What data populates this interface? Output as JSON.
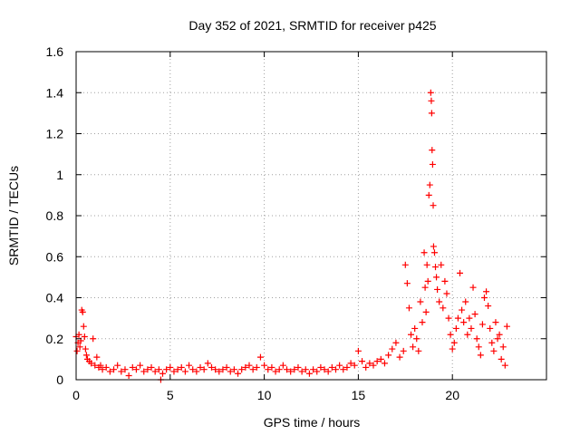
{
  "chart_data": {
    "type": "scatter",
    "title": "Day 352 of 2021, SRMTID for receiver p425",
    "xlabel": "GPS time / hours",
    "ylabel": "SRMTID / TECUs",
    "xlim": [
      0,
      25
    ],
    "ylim": [
      0,
      1.6
    ],
    "x_ticks": [
      0,
      5,
      10,
      15,
      20
    ],
    "x_tick_labels": [
      "0",
      "5",
      "10",
      "15",
      "20"
    ],
    "y_ticks": [
      0,
      0.2,
      0.4,
      0.6,
      0.8,
      1.0,
      1.2,
      1.4,
      1.6
    ],
    "y_tick_labels": [
      "0",
      "0.2",
      "0.4",
      "0.6",
      "0.8",
      "1",
      "1.2",
      "1.4",
      "1.6"
    ],
    "grid": true,
    "marker": "+",
    "series": [
      {
        "name": "SRMTID",
        "color": "#ff0000",
        "points": [
          [
            0.0,
            0.21
          ],
          [
            0.05,
            0.14
          ],
          [
            0.1,
            0.18
          ],
          [
            0.15,
            0.22
          ],
          [
            0.2,
            0.16
          ],
          [
            0.25,
            0.19
          ],
          [
            0.3,
            0.34
          ],
          [
            0.35,
            0.33
          ],
          [
            0.4,
            0.26
          ],
          [
            0.45,
            0.21
          ],
          [
            0.5,
            0.15
          ],
          [
            0.55,
            0.12
          ],
          [
            0.6,
            0.1
          ],
          [
            0.7,
            0.09
          ],
          [
            0.8,
            0.08
          ],
          [
            0.9,
            0.2
          ],
          [
            1.0,
            0.07
          ],
          [
            1.1,
            0.11
          ],
          [
            1.2,
            0.06
          ],
          [
            1.3,
            0.07
          ],
          [
            1.4,
            0.05
          ],
          [
            1.6,
            0.06
          ],
          [
            1.8,
            0.04
          ],
          [
            2.0,
            0.05
          ],
          [
            2.2,
            0.07
          ],
          [
            2.4,
            0.04
          ],
          [
            2.6,
            0.05
          ],
          [
            2.8,
            0.02
          ],
          [
            3.0,
            0.06
          ],
          [
            3.2,
            0.05
          ],
          [
            3.4,
            0.07
          ],
          [
            3.6,
            0.04
          ],
          [
            3.8,
            0.05
          ],
          [
            4.0,
            0.06
          ],
          [
            4.2,
            0.04
          ],
          [
            4.4,
            0.05
          ],
          [
            4.5,
            0.0
          ],
          [
            4.6,
            0.03
          ],
          [
            4.8,
            0.05
          ],
          [
            5.0,
            0.06
          ],
          [
            5.2,
            0.04
          ],
          [
            5.4,
            0.05
          ],
          [
            5.6,
            0.06
          ],
          [
            5.8,
            0.04
          ],
          [
            6.0,
            0.07
          ],
          [
            6.2,
            0.05
          ],
          [
            6.4,
            0.04
          ],
          [
            6.6,
            0.06
          ],
          [
            6.8,
            0.05
          ],
          [
            7.0,
            0.08
          ],
          [
            7.2,
            0.06
          ],
          [
            7.4,
            0.05
          ],
          [
            7.6,
            0.04
          ],
          [
            7.8,
            0.05
          ],
          [
            8.0,
            0.06
          ],
          [
            8.2,
            0.04
          ],
          [
            8.4,
            0.05
          ],
          [
            8.6,
            0.03
          ],
          [
            8.8,
            0.05
          ],
          [
            9.0,
            0.06
          ],
          [
            9.2,
            0.07
          ],
          [
            9.4,
            0.05
          ],
          [
            9.6,
            0.06
          ],
          [
            9.8,
            0.11
          ],
          [
            10.0,
            0.07
          ],
          [
            10.2,
            0.05
          ],
          [
            10.4,
            0.06
          ],
          [
            10.6,
            0.04
          ],
          [
            10.8,
            0.05
          ],
          [
            11.0,
            0.07
          ],
          [
            11.2,
            0.05
          ],
          [
            11.4,
            0.04
          ],
          [
            11.6,
            0.05
          ],
          [
            11.8,
            0.06
          ],
          [
            12.0,
            0.04
          ],
          [
            12.2,
            0.05
          ],
          [
            12.4,
            0.03
          ],
          [
            12.6,
            0.05
          ],
          [
            12.8,
            0.04
          ],
          [
            13.0,
            0.06
          ],
          [
            13.2,
            0.05
          ],
          [
            13.4,
            0.04
          ],
          [
            13.6,
            0.06
          ],
          [
            13.8,
            0.05
          ],
          [
            14.0,
            0.07
          ],
          [
            14.2,
            0.05
          ],
          [
            14.4,
            0.06
          ],
          [
            14.6,
            0.08
          ],
          [
            14.8,
            0.07
          ],
          [
            15.0,
            0.14
          ],
          [
            15.2,
            0.09
          ],
          [
            15.4,
            0.06
          ],
          [
            15.6,
            0.08
          ],
          [
            15.8,
            0.07
          ],
          [
            16.0,
            0.09
          ],
          [
            16.2,
            0.1
          ],
          [
            16.4,
            0.08
          ],
          [
            16.6,
            0.12
          ],
          [
            16.8,
            0.15
          ],
          [
            17.0,
            0.18
          ],
          [
            17.2,
            0.11
          ],
          [
            17.4,
            0.14
          ],
          [
            17.5,
            0.56
          ],
          [
            17.6,
            0.47
          ],
          [
            17.7,
            0.35
          ],
          [
            17.8,
            0.22
          ],
          [
            17.9,
            0.16
          ],
          [
            18.0,
            0.25
          ],
          [
            18.1,
            0.2
          ],
          [
            18.2,
            0.14
          ],
          [
            18.3,
            0.38
          ],
          [
            18.4,
            0.28
          ],
          [
            18.5,
            0.62
          ],
          [
            18.55,
            0.45
          ],
          [
            18.6,
            0.33
          ],
          [
            18.65,
            0.56
          ],
          [
            18.7,
            0.48
          ],
          [
            18.75,
            0.9
          ],
          [
            18.8,
            0.95
          ],
          [
            18.85,
            1.4
          ],
          [
            18.88,
            1.36
          ],
          [
            18.9,
            1.3
          ],
          [
            18.92,
            1.12
          ],
          [
            18.95,
            1.05
          ],
          [
            18.98,
            0.85
          ],
          [
            19.0,
            0.65
          ],
          [
            19.05,
            0.62
          ],
          [
            19.1,
            0.55
          ],
          [
            19.15,
            0.5
          ],
          [
            19.2,
            0.44
          ],
          [
            19.3,
            0.38
          ],
          [
            19.4,
            0.56
          ],
          [
            19.5,
            0.35
          ],
          [
            19.6,
            0.48
          ],
          [
            19.7,
            0.42
          ],
          [
            19.8,
            0.3
          ],
          [
            19.9,
            0.22
          ],
          [
            20.0,
            0.15
          ],
          [
            20.1,
            0.18
          ],
          [
            20.2,
            0.25
          ],
          [
            20.3,
            0.3
          ],
          [
            20.4,
            0.52
          ],
          [
            20.5,
            0.34
          ],
          [
            20.6,
            0.28
          ],
          [
            20.7,
            0.38
          ],
          [
            20.8,
            0.22
          ],
          [
            20.9,
            0.3
          ],
          [
            21.0,
            0.25
          ],
          [
            21.1,
            0.45
          ],
          [
            21.2,
            0.32
          ],
          [
            21.3,
            0.2
          ],
          [
            21.4,
            0.16
          ],
          [
            21.5,
            0.12
          ],
          [
            21.6,
            0.27
          ],
          [
            21.7,
            0.4
          ],
          [
            21.8,
            0.43
          ],
          [
            21.9,
            0.36
          ],
          [
            22.0,
            0.25
          ],
          [
            22.1,
            0.18
          ],
          [
            22.2,
            0.14
          ],
          [
            22.3,
            0.28
          ],
          [
            22.4,
            0.2
          ],
          [
            22.5,
            0.22
          ],
          [
            22.6,
            0.1
          ],
          [
            22.7,
            0.16
          ],
          [
            22.8,
            0.07
          ],
          [
            22.9,
            0.26
          ]
        ]
      }
    ]
  }
}
